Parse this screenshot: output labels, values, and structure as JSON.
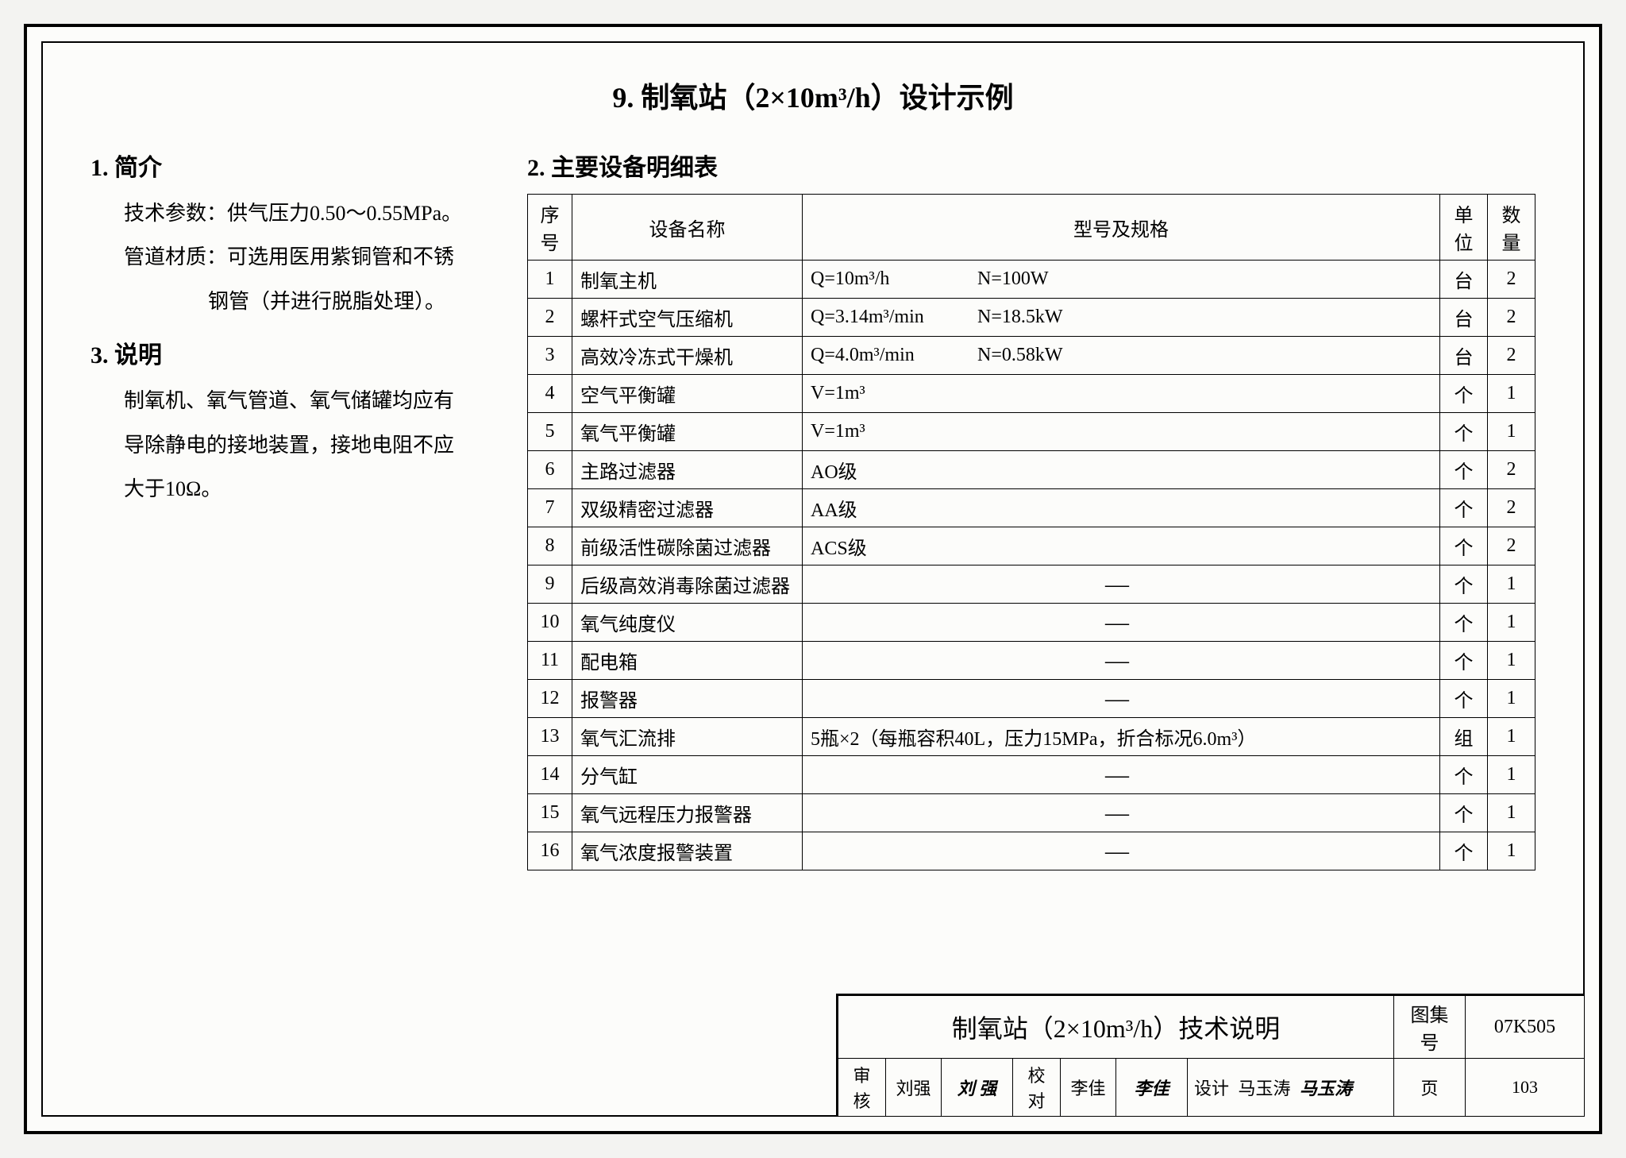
{
  "mainTitle": "9. 制氧站（2×10m³/h）设计示例",
  "section1": {
    "heading": "1. 简介",
    "line1": "技术参数：供气压力0.50～0.55MPa。",
    "line2": "管道材质：可选用医用紫铜管和不锈",
    "line3": "钢管（并进行脱脂处理）。"
  },
  "section3": {
    "heading": "3. 说明",
    "line1": "制氧机、氧气管道、氧气储罐均应有",
    "line2": "导除静电的接地装置，接地电阻不应",
    "line3": "大于10Ω。"
  },
  "section2Heading": "2. 主要设备明细表",
  "equipTable": {
    "headers": {
      "idx": "序号",
      "name": "设备名称",
      "spec": "型号及规格",
      "unit": "单位",
      "qty": "数量"
    },
    "rows": [
      {
        "idx": "1",
        "name": "制氧主机",
        "spec": "Q=10m³/h",
        "spec2": "N=100W",
        "unit": "台",
        "qty": "2"
      },
      {
        "idx": "2",
        "name": "螺杆式空气压缩机",
        "spec": "Q=3.14m³/min",
        "spec2": "N=18.5kW",
        "unit": "台",
        "qty": "2"
      },
      {
        "idx": "3",
        "name": "高效冷冻式干燥机",
        "spec": "Q=4.0m³/min",
        "spec2": "N=0.58kW",
        "unit": "台",
        "qty": "2"
      },
      {
        "idx": "4",
        "name": "空气平衡罐",
        "spec": "V=1m³",
        "spec2": "",
        "unit": "个",
        "qty": "1"
      },
      {
        "idx": "5",
        "name": "氧气平衡罐",
        "spec": "V=1m³",
        "spec2": "",
        "unit": "个",
        "qty": "1"
      },
      {
        "idx": "6",
        "name": "主路过滤器",
        "spec": "AO级",
        "spec2": "",
        "unit": "个",
        "qty": "2"
      },
      {
        "idx": "7",
        "name": "双级精密过滤器",
        "spec": "AA级",
        "spec2": "",
        "unit": "个",
        "qty": "2"
      },
      {
        "idx": "8",
        "name": "前级活性碳除菌过滤器",
        "spec": "ACS级",
        "spec2": "",
        "unit": "个",
        "qty": "2"
      },
      {
        "idx": "9",
        "name": "后级高效消毒除菌过滤器",
        "spec": "—",
        "spec2": "",
        "unit": "个",
        "qty": "1",
        "dash": true
      },
      {
        "idx": "10",
        "name": "氧气纯度仪",
        "spec": "—",
        "spec2": "",
        "unit": "个",
        "qty": "1",
        "dash": true
      },
      {
        "idx": "11",
        "name": "配电箱",
        "spec": "—",
        "spec2": "",
        "unit": "个",
        "qty": "1",
        "dash": true
      },
      {
        "idx": "12",
        "name": "报警器",
        "spec": "—",
        "spec2": "",
        "unit": "个",
        "qty": "1",
        "dash": true
      },
      {
        "idx": "13",
        "name": "氧气汇流排",
        "spec": "5瓶×2（每瓶容积40L，压力15MPa，折合标况6.0m³）",
        "spec2": "",
        "unit": "组",
        "qty": "1"
      },
      {
        "idx": "14",
        "name": "分气缸",
        "spec": "—",
        "spec2": "",
        "unit": "个",
        "qty": "1",
        "dash": true
      },
      {
        "idx": "15",
        "name": "氧气远程压力报警器",
        "spec": "—",
        "spec2": "",
        "unit": "个",
        "qty": "1",
        "dash": true
      },
      {
        "idx": "16",
        "name": "氧气浓度报警装置",
        "spec": "—",
        "spec2": "",
        "unit": "个",
        "qty": "1",
        "dash": true
      }
    ]
  },
  "titleBlock": {
    "title": "制氧站（2×10m³/h）技术说明",
    "setLabel": "图集号",
    "setNo": "07K505",
    "review": "审核",
    "reviewer": "刘强",
    "reviewerSig": "刘 强",
    "check": "校对",
    "checker": "李佳",
    "checkerSig": "李佳",
    "design": "设计",
    "designer": "马玉涛",
    "designerSig": "马玉涛",
    "pageLabel": "页",
    "pageNo": "103"
  }
}
